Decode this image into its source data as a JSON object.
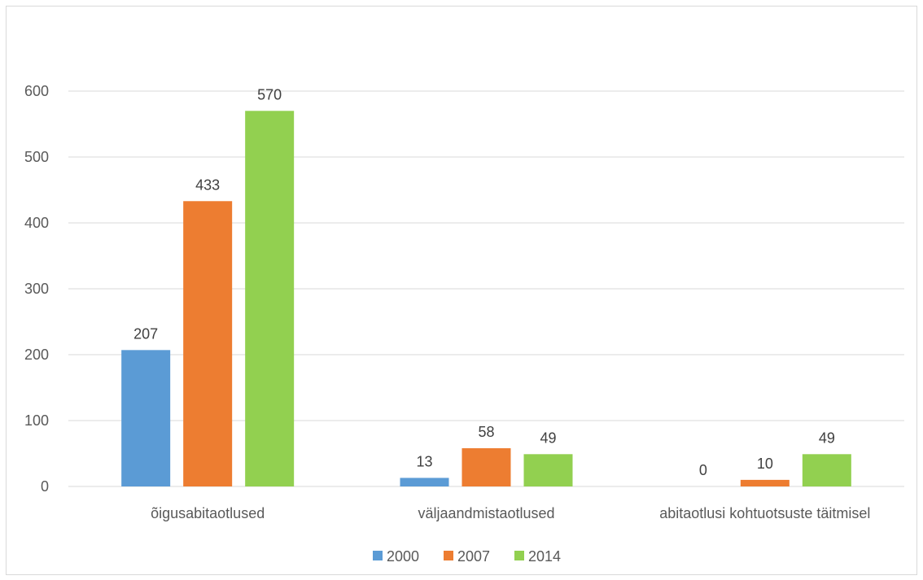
{
  "chart_data": {
    "type": "bar",
    "categories": [
      "õigusabitaotlused",
      "väljaandmistaotlused",
      "abitaotlusi kohtuotsuste täitmisel"
    ],
    "series": [
      {
        "name": "2000",
        "values": [
          207,
          13,
          0
        ],
        "color": "#5b9bd5"
      },
      {
        "name": "2007",
        "values": [
          433,
          58,
          10
        ],
        "color": "#ed7d31"
      },
      {
        "name": "2014",
        "values": [
          570,
          49,
          49
        ],
        "color": "#92d050"
      }
    ],
    "title": "",
    "xlabel": "",
    "ylabel": "",
    "ylim": [
      0,
      600
    ],
    "yticks": [
      0,
      100,
      200,
      300,
      400,
      500,
      600
    ],
    "grid": true,
    "legend": "bottom",
    "data_labels": true
  }
}
